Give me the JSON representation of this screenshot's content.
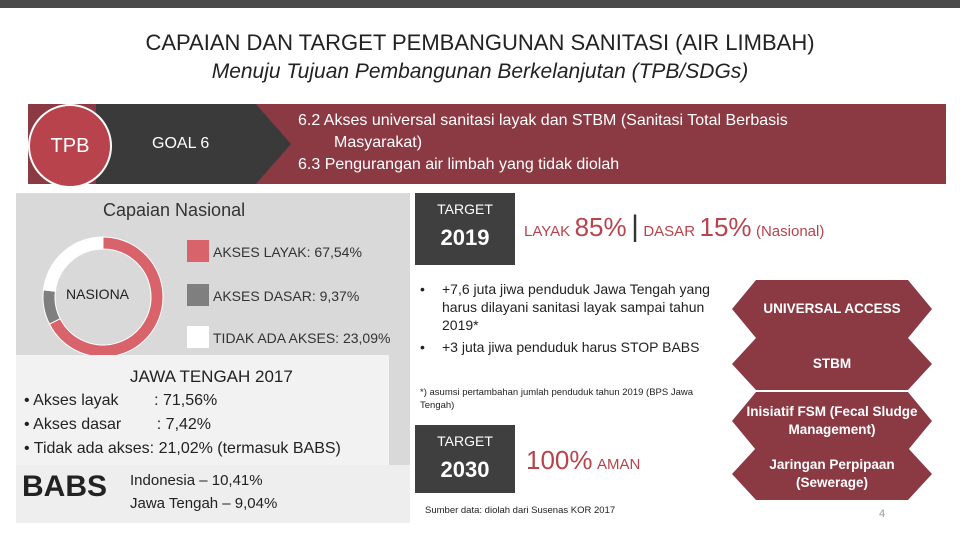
{
  "header": {
    "title": "CAPAIAN DAN TARGET PEMBANGUNAN SANITASI (AIR LIMBAH)",
    "subtitle": "Menuju Tujuan Pembangunan Berkelanjutan (TPB/SDGs)"
  },
  "goal": {
    "tpb": "TPB",
    "goal_label": "GOAL 6",
    "line1": "6.2  Akses universal sanitasi layak dan STBM (Sanitasi Total Berbasis",
    "line2": "Masyarakat)",
    "line3": "6.3  Pengurangan air limbah yang tidak diolah"
  },
  "capaian": {
    "heading": "Capaian Nasional",
    "donut_label": "NASIONA",
    "legend": [
      {
        "label": "AKSES LAYAK: 67,54%",
        "value": 67.54,
        "color": "#d9636b"
      },
      {
        "label": "AKSES DASAR: 9,37%",
        "value": 9.37,
        "color": "#7f7f7f"
      },
      {
        "label": "TIDAK ADA AKSES: 23,09%",
        "value": 23.09,
        "color": "#ffffff"
      }
    ]
  },
  "jateng": {
    "title": "JAWA TENGAH 2017",
    "items": [
      "Akses layak        : 71,56%",
      "Akses dasar        : 7,42%",
      "Tidak ada akses: 21,02% (termasuk BABS)"
    ]
  },
  "babs": {
    "label": "BABS",
    "line1": "Indonesia – 10,41%",
    "line2": "Jawa Tengah – 9,04%"
  },
  "target2019": {
    "label": "TARGET",
    "year": "2019",
    "layak_label": "LAYAK",
    "layak_value": "85%",
    "separator": "|",
    "dasar_label": "DASAR",
    "dasar_value": "15%",
    "scope": "(Nasional)"
  },
  "bullets": [
    "+7,6 juta jiwa penduduk Jawa Tengah yang harus dilayani sanitasi layak sampai tahun 2019*",
    "+3 juta jiwa penduduk harus STOP BABS"
  ],
  "note": "*) asumsi pertambahan jumlah penduduk tahun 2019 (BPS Jawa Tengah)",
  "target2030": {
    "label": "TARGET",
    "year": "2030",
    "value": "100%",
    "value_label": "AMAN"
  },
  "source": "Sumber data: diolah dari Susenas KOR 2017",
  "strategies": [
    "UNIVERSAL ACCESS",
    "STBM",
    "Inisiatif FSM (Fecal Sludge Management)",
    "Jaringan Perpipaan (Sewerage)"
  ],
  "page_number": "4",
  "colors": {
    "accent": "#8b3a44",
    "highlight": "#b8434c",
    "dark": "#3f3f3f"
  }
}
